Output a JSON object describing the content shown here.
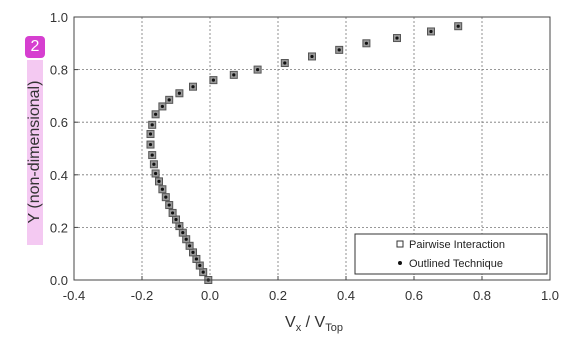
{
  "badge": "2",
  "chart_data": {
    "type": "scatter",
    "xlabel_main": "V",
    "xlabel_sub1": "x",
    "xlabel_mid": " / V",
    "xlabel_sub2": "Top",
    "ylabel": "Y (non-dimensional)",
    "xlim": [
      -0.4,
      1.0
    ],
    "ylim": [
      0.0,
      1.0
    ],
    "xticks": [
      "-0.4",
      "-0.2",
      "0.0",
      "0.2",
      "0.4",
      "0.6",
      "0.8",
      "1.0"
    ],
    "yticks": [
      "0.0",
      "0.2",
      "0.4",
      "0.6",
      "0.8",
      "1.0"
    ],
    "grid": true,
    "legend_position": "bottom-right",
    "series": [
      {
        "name": "Pairwise Interaction",
        "marker": "square",
        "color": "#555555",
        "x": [
          -0.005,
          -0.02,
          -0.03,
          -0.04,
          -0.05,
          -0.06,
          -0.07,
          -0.08,
          -0.09,
          -0.1,
          -0.11,
          -0.12,
          -0.13,
          -0.14,
          -0.15,
          -0.16,
          -0.165,
          -0.17,
          -0.175,
          -0.175,
          -0.17,
          -0.16,
          -0.14,
          -0.12,
          -0.09,
          -0.05,
          0.01,
          0.07,
          0.14,
          0.22,
          0.3,
          0.38,
          0.46,
          0.55,
          0.65,
          0.73
        ],
        "y": [
          0.0,
          0.03,
          0.055,
          0.08,
          0.105,
          0.13,
          0.155,
          0.18,
          0.205,
          0.23,
          0.255,
          0.285,
          0.315,
          0.345,
          0.375,
          0.405,
          0.44,
          0.475,
          0.515,
          0.555,
          0.59,
          0.63,
          0.66,
          0.685,
          0.71,
          0.735,
          0.76,
          0.78,
          0.8,
          0.825,
          0.85,
          0.875,
          0.9,
          0.92,
          0.945,
          0.965
        ]
      },
      {
        "name": "Outlined Technique",
        "marker": "dot",
        "color": "#111111",
        "x": [
          -0.005,
          -0.02,
          -0.03,
          -0.04,
          -0.05,
          -0.06,
          -0.07,
          -0.08,
          -0.09,
          -0.1,
          -0.11,
          -0.12,
          -0.13,
          -0.14,
          -0.15,
          -0.16,
          -0.165,
          -0.17,
          -0.175,
          -0.175,
          -0.17,
          -0.16,
          -0.14,
          -0.12,
          -0.09,
          -0.05,
          0.01,
          0.07,
          0.14,
          0.22,
          0.3,
          0.38,
          0.46,
          0.55,
          0.65,
          0.73
        ],
        "y": [
          0.0,
          0.03,
          0.055,
          0.08,
          0.105,
          0.13,
          0.155,
          0.18,
          0.205,
          0.23,
          0.255,
          0.285,
          0.315,
          0.345,
          0.375,
          0.405,
          0.44,
          0.475,
          0.515,
          0.555,
          0.59,
          0.63,
          0.66,
          0.685,
          0.71,
          0.735,
          0.76,
          0.78,
          0.8,
          0.825,
          0.85,
          0.875,
          0.9,
          0.92,
          0.945,
          0.965
        ]
      }
    ]
  }
}
